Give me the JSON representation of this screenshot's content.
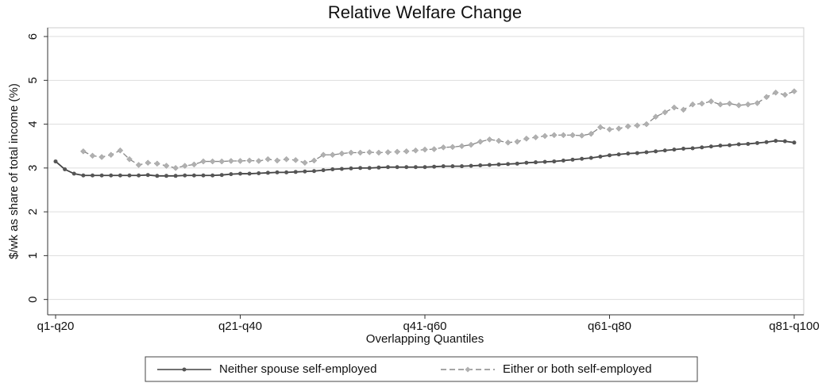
{
  "chart_data": {
    "type": "line",
    "title": "Relative Welfare Change",
    "x_label": "Overlapping Quantiles",
    "y_label": "$/wk as share of total income (%)",
    "categories": [
      "q1-q20",
      null,
      null,
      null,
      null,
      null,
      null,
      null,
      null,
      null,
      null,
      null,
      null,
      null,
      null,
      null,
      null,
      null,
      null,
      null,
      "q21-q40",
      null,
      null,
      null,
      null,
      null,
      null,
      null,
      null,
      null,
      null,
      null,
      null,
      null,
      null,
      null,
      null,
      null,
      null,
      null,
      "q41-q60",
      null,
      null,
      null,
      null,
      null,
      null,
      null,
      null,
      null,
      null,
      null,
      null,
      null,
      null,
      null,
      null,
      null,
      null,
      null,
      "q61-q80",
      null,
      null,
      null,
      null,
      null,
      null,
      null,
      null,
      null,
      null,
      null,
      null,
      null,
      null,
      null,
      null,
      null,
      null,
      null,
      "q81-q100"
    ],
    "series": [
      {
        "name": "Neither spouse self-employed",
        "color": "#444444",
        "dash": "solid",
        "values": [
          3.15,
          2.97,
          2.87,
          2.83,
          2.83,
          2.83,
          2.83,
          2.83,
          2.83,
          2.83,
          2.84,
          2.82,
          2.82,
          2.82,
          2.83,
          2.83,
          2.83,
          2.83,
          2.84,
          2.86,
          2.87,
          2.87,
          2.88,
          2.89,
          2.9,
          2.9,
          2.91,
          2.92,
          2.93,
          2.95,
          2.97,
          2.98,
          2.99,
          3.0,
          3.0,
          3.01,
          3.02,
          3.02,
          3.02,
          3.02,
          3.02,
          3.03,
          3.04,
          3.04,
          3.04,
          3.05,
          3.06,
          3.07,
          3.08,
          3.09,
          3.1,
          3.12,
          3.13,
          3.14,
          3.15,
          3.17,
          3.19,
          3.21,
          3.23,
          3.26,
          3.29,
          3.31,
          3.33,
          3.34,
          3.36,
          3.38,
          3.4,
          3.42,
          3.44,
          3.45,
          3.47,
          3.49,
          3.51,
          3.52,
          3.54,
          3.55,
          3.57,
          3.59,
          3.62,
          3.61,
          3.58
        ]
      },
      {
        "name": "Either or both self-employed",
        "color": "#888888",
        "dash": "dashed",
        "values": [
          null,
          null,
          null,
          3.38,
          3.28,
          3.25,
          3.3,
          3.4,
          3.2,
          3.07,
          3.12,
          3.1,
          3.05,
          3.0,
          3.05,
          3.08,
          3.15,
          3.15,
          3.15,
          3.16,
          3.16,
          3.17,
          3.16,
          3.2,
          3.17,
          3.2,
          3.18,
          3.12,
          3.17,
          3.3,
          3.3,
          3.33,
          3.35,
          3.35,
          3.36,
          3.35,
          3.36,
          3.37,
          3.38,
          3.4,
          3.42,
          3.43,
          3.47,
          3.48,
          3.5,
          3.53,
          3.6,
          3.65,
          3.62,
          3.58,
          3.6,
          3.67,
          3.7,
          3.73,
          3.75,
          3.75,
          3.75,
          3.74,
          3.78,
          3.93,
          3.88,
          3.9,
          3.95,
          3.97,
          4.0,
          4.17,
          4.27,
          4.38,
          4.33,
          4.45,
          4.47,
          4.52,
          4.45,
          4.47,
          4.43,
          4.45,
          4.48,
          4.62,
          4.72,
          4.67,
          4.75
        ]
      }
    ],
    "ylim": [
      -0.35,
      6.2
    ],
    "yticks": [
      0,
      1,
      2,
      3,
      4,
      5,
      6
    ],
    "grid": true,
    "legend": "bottom"
  }
}
